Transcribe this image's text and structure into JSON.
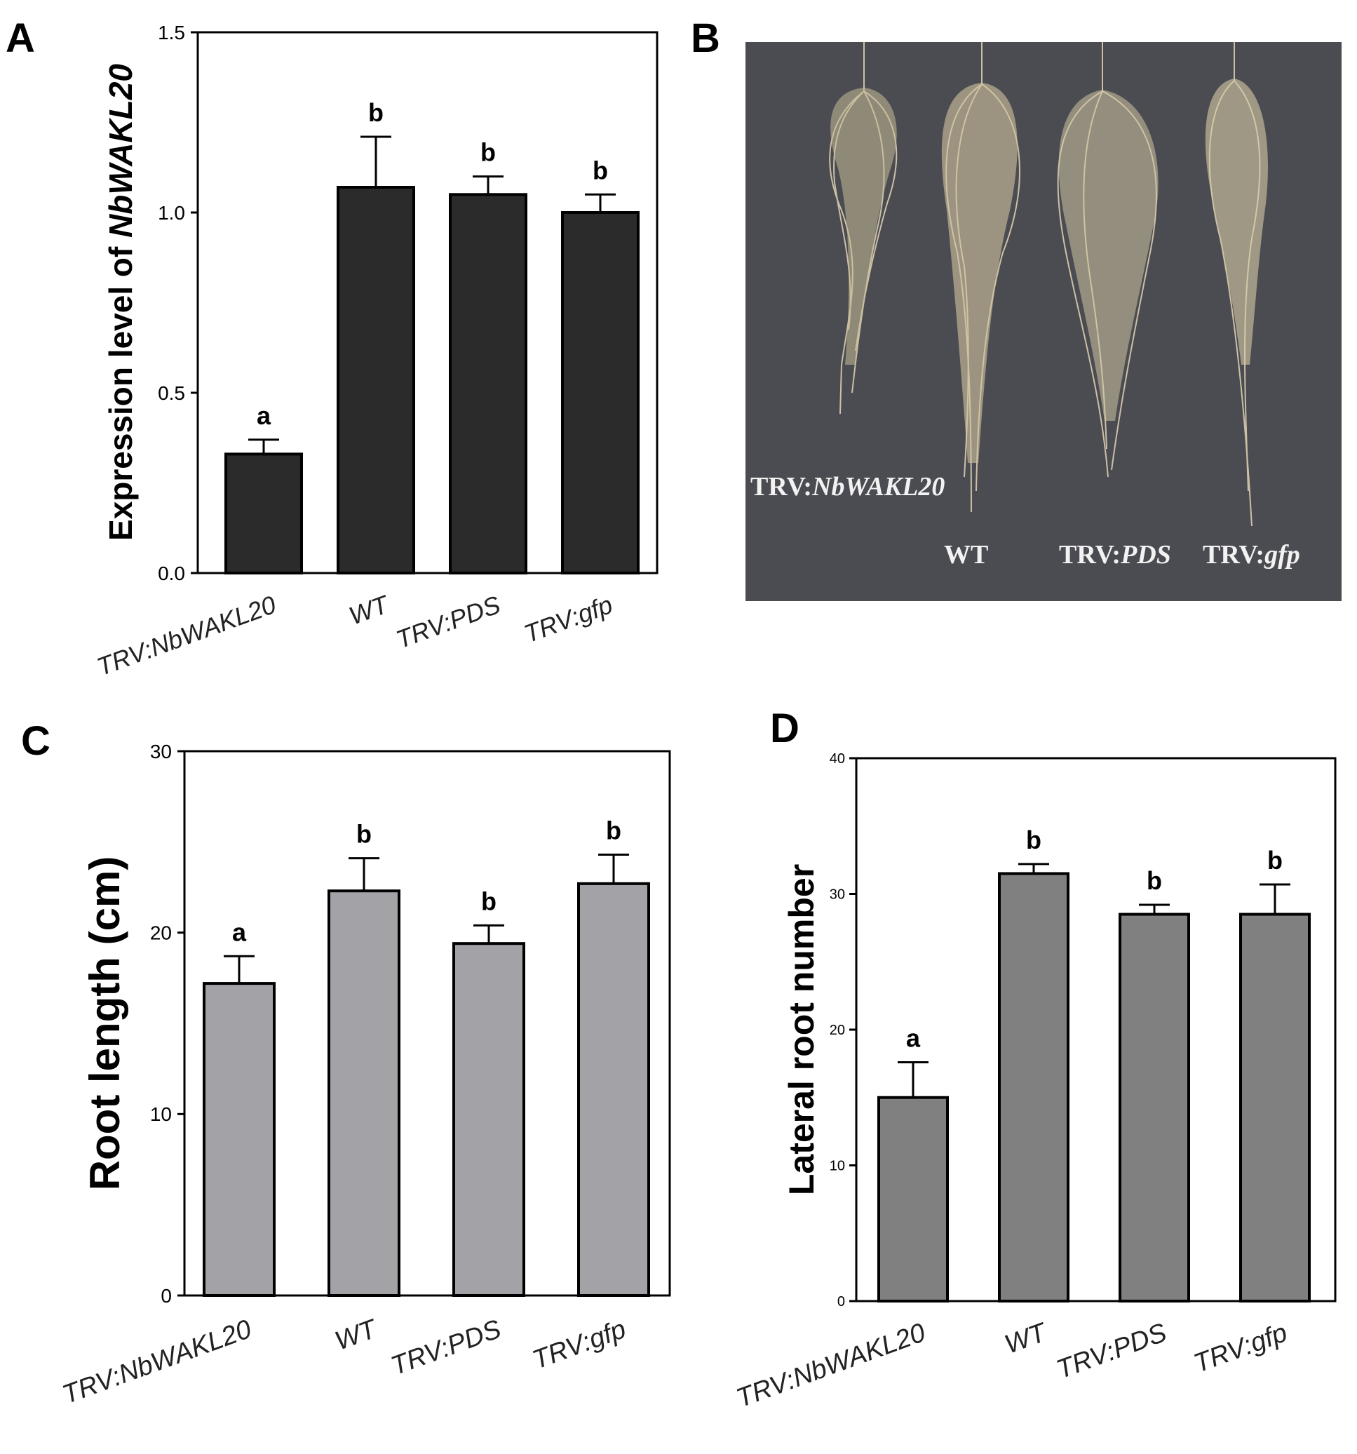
{
  "panels": {
    "A": "A",
    "B": "B",
    "C": "C",
    "D": "D"
  },
  "photo": {
    "bg_color": "#4b4c52",
    "labels": {
      "l1_prefix": "TRV:",
      "l1_italic": "NbWAKL20",
      "l2": "WT",
      "l3_prefix": "TRV:",
      "l3_italic": "PDS",
      "l4_prefix": "TRV:",
      "l4_italic": "gfp"
    }
  },
  "chart_data": [
    {
      "id": "A",
      "type": "bar",
      "categories": [
        "TRV:NbWAKL20",
        "WT",
        "TRV:PDS",
        "TRV:gfp"
      ],
      "values": [
        0.33,
        1.07,
        1.05,
        1.0
      ],
      "errors": [
        0.04,
        0.14,
        0.05,
        0.05
      ],
      "significance": [
        "a",
        "b",
        "b",
        "b"
      ],
      "ylabel_prefix": "Expression level of ",
      "ylabel_italic": "NbWAKL20",
      "ylim": [
        0,
        1.5
      ],
      "yticks": [
        "0.0",
        "0.5",
        "1.0",
        "1.5"
      ],
      "bar_color": "#2b2b2b"
    },
    {
      "id": "C",
      "type": "bar",
      "categories": [
        "TRV:NbWAKL20",
        "WT",
        "TRV:PDS",
        "TRV:gfp"
      ],
      "values": [
        17.2,
        22.3,
        19.4,
        22.7
      ],
      "errors": [
        1.5,
        1.8,
        1.0,
        1.6
      ],
      "significance": [
        "a",
        "b",
        "b",
        "b"
      ],
      "ylabel": "Root length (cm)",
      "ylim": [
        0,
        30
      ],
      "yticks": [
        "0",
        "10",
        "20",
        "30"
      ],
      "bar_color": "#a3a2a7"
    },
    {
      "id": "D",
      "type": "bar",
      "categories": [
        "TRV:NbWAKL20",
        "WT",
        "TRV:PDS",
        "TRV:gfp"
      ],
      "values": [
        15.0,
        31.5,
        28.5,
        28.5
      ],
      "errors": [
        2.6,
        0.7,
        0.7,
        2.2
      ],
      "significance": [
        "a",
        "b",
        "b",
        "b"
      ],
      "ylabel": "Lateral root number",
      "ylim": [
        0,
        40
      ],
      "yticks": [
        "0",
        "10",
        "20",
        "30",
        "40"
      ],
      "bar_color": "#808080"
    }
  ]
}
